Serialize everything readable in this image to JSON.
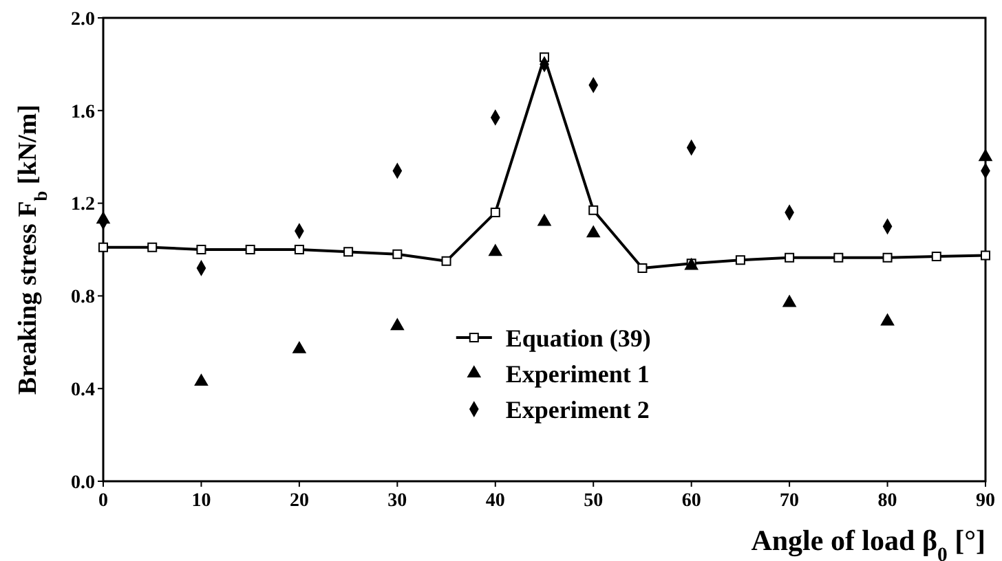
{
  "chart_data": {
    "type": "scatter",
    "xlabel": "Angle of load β$_{0}$ [°]",
    "ylabel": "Breaking stress F$_{b}$ [kN/m]",
    "xlim": [
      0,
      90
    ],
    "ylim": [
      0,
      2
    ],
    "xticks": [
      0,
      10,
      20,
      30,
      40,
      50,
      60,
      70,
      80,
      90
    ],
    "yticks": [
      {
        "value": 0,
        "label": "0.0"
      },
      {
        "value": 0.4,
        "label": "0.4"
      },
      {
        "value": 0.8,
        "label": "0.8"
      },
      {
        "value": 1.2,
        "label": "1.2"
      },
      {
        "value": 1.6,
        "label": "1.6"
      },
      {
        "value": 2,
        "label": "2.0"
      }
    ],
    "grid": false,
    "legend": "bottom",
    "series": [
      {
        "name": "Equation (39)",
        "type": "line",
        "marker": "square",
        "line_style": "solid",
        "color": "#000000",
        "x": [
          0,
          5,
          10,
          15,
          20,
          25,
          30,
          35,
          40,
          45,
          50,
          55,
          60,
          65,
          70,
          75,
          80,
          85,
          90
        ],
        "values": [
          1.01,
          1.01,
          1.0,
          1.0,
          1.0,
          0.99,
          0.98,
          0.95,
          1.16,
          1.83,
          1.17,
          0.92,
          0.94,
          0.955,
          0.965,
          0.965,
          0.965,
          0.97,
          0.975
        ]
      },
      {
        "name": "Experiment 1",
        "marker": "triangle",
        "color": "#000000",
        "x": [
          0,
          10,
          20,
          30,
          40,
          45,
          50,
          60,
          70,
          80,
          90
        ],
        "values": [
          1.13,
          0.43,
          0.57,
          0.67,
          0.99,
          1.12,
          1.07,
          0.93,
          0.77,
          0.69,
          1.4
        ]
      },
      {
        "name": "Experiment 2",
        "marker": "diamond",
        "color": "#000000",
        "x": [
          0,
          10,
          20,
          30,
          40,
          45,
          50,
          60,
          70,
          80,
          90
        ],
        "values": [
          1.12,
          0.92,
          1.08,
          1.34,
          1.57,
          1.8,
          1.71,
          1.44,
          1.16,
          1.1,
          1.34
        ]
      }
    ]
  }
}
